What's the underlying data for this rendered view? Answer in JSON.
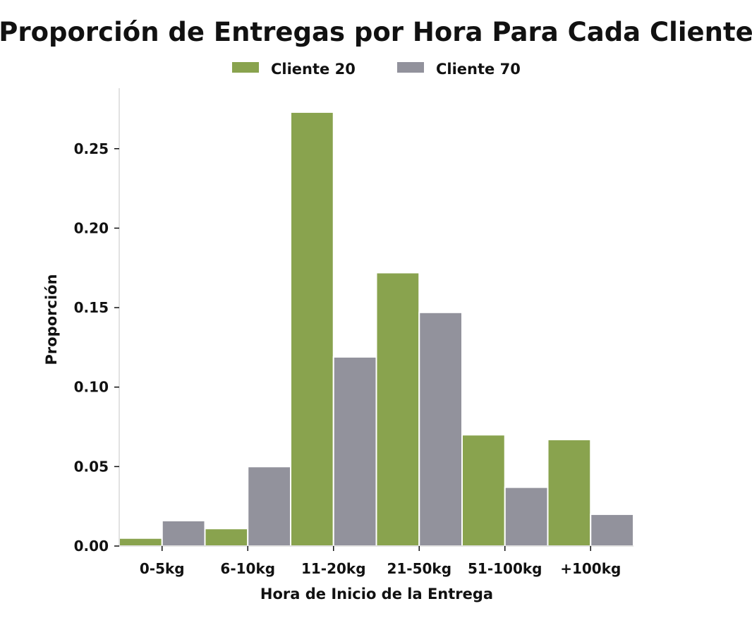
{
  "chart_data": {
    "type": "bar",
    "title": "Proporción de Entregas por Hora Para Cada Cliente",
    "xlabel": "Hora de Inicio de la Entrega",
    "ylabel": "Proporción",
    "categories": [
      "0-5kg",
      "6-10kg",
      "11-20kg",
      "21-50kg",
      "51-100kg",
      "+100kg"
    ],
    "series": [
      {
        "name": "Cliente 20",
        "color": "#89a34e",
        "values": [
          0.005,
          0.011,
          0.273,
          0.172,
          0.07,
          0.067
        ]
      },
      {
        "name": "Cliente 70",
        "color": "#92929c",
        "values": [
          0.016,
          0.05,
          0.119,
          0.147,
          0.037,
          0.02
        ]
      }
    ],
    "ylim": [
      0,
      0.29
    ],
    "yticks": [
      "0.00",
      "0.05",
      "0.10",
      "0.15",
      "0.20",
      "0.25"
    ],
    "grid": false,
    "legend_position": "top-center"
  }
}
